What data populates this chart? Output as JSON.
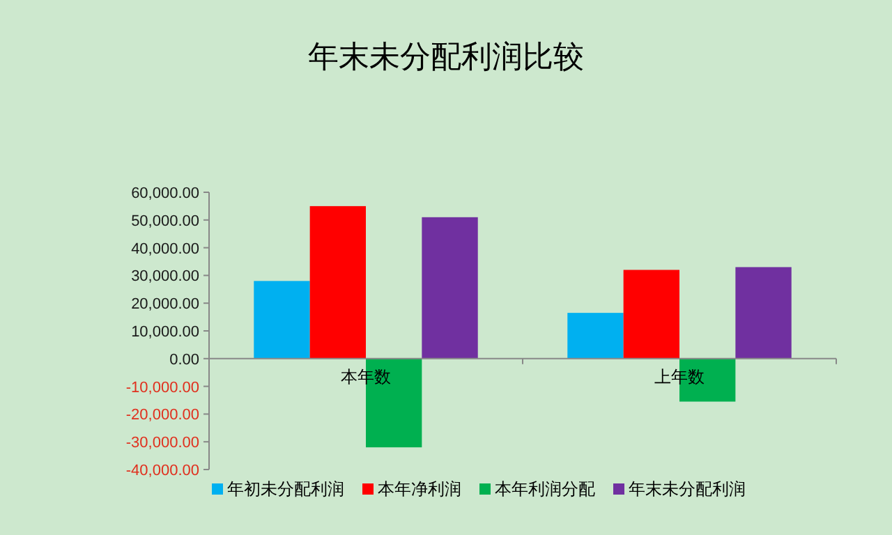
{
  "chart_data": {
    "type": "bar",
    "title": "年末未分配利润比较",
    "categories": [
      "本年数",
      "上年数"
    ],
    "series": [
      {
        "name": "年初未分配利润",
        "color": "#00b0f0",
        "values": [
          28000,
          16500
        ]
      },
      {
        "name": "本年净利润",
        "color": "#ff0000",
        "values": [
          55000,
          32000
        ]
      },
      {
        "name": "本年利润分配",
        "color": "#00b050",
        "values": [
          -32000,
          -15500
        ]
      },
      {
        "name": "年末未分配利润",
        "color": "#7030a0",
        "values": [
          51000,
          33000
        ]
      }
    ],
    "ylim": [
      -40000,
      60000
    ],
    "yticks": [
      {
        "value": -40000,
        "label": "-40,000.00"
      },
      {
        "value": -30000,
        "label": "-30,000.00"
      },
      {
        "value": -20000,
        "label": "-20,000.00"
      },
      {
        "value": -10000,
        "label": "-10,000.00"
      },
      {
        "value": 0,
        "label": "0.00"
      },
      {
        "value": 10000,
        "label": "10,000.00"
      },
      {
        "value": 20000,
        "label": "20,000.00"
      },
      {
        "value": 30000,
        "label": "30,000.00"
      },
      {
        "value": 40000,
        "label": "40,000.00"
      },
      {
        "value": 50000,
        "label": "50,000.00"
      },
      {
        "value": 60000,
        "label": "60,000.00"
      }
    ],
    "legend": "bottom",
    "grid": false
  }
}
